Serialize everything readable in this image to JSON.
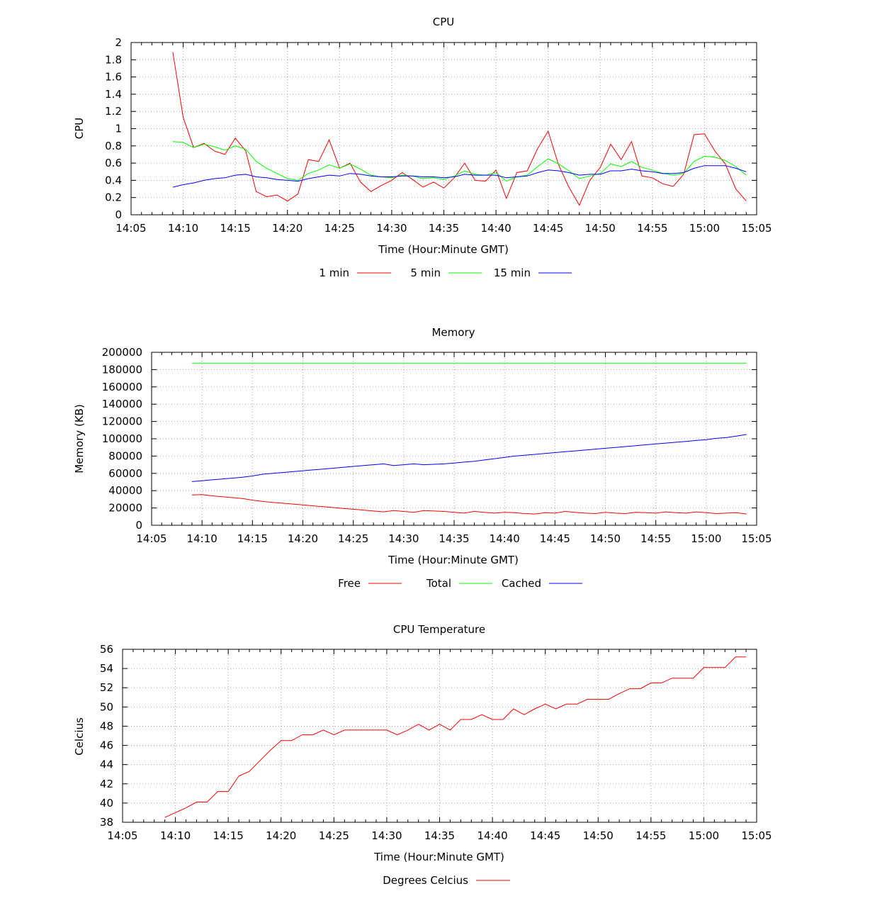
{
  "chart_data": [
    {
      "type": "line",
      "title": "CPU",
      "xlabel": "Time (Hour:Minute GMT)",
      "ylabel": "CPU",
      "xlim": [
        "14:05",
        "15:05"
      ],
      "ylim": [
        0,
        2
      ],
      "xticks": [
        "14:05",
        "14:10",
        "14:15",
        "14:20",
        "14:25",
        "14:30",
        "14:35",
        "14:40",
        "14:45",
        "14:50",
        "14:55",
        "15:00",
        "15:05"
      ],
      "yticks": [
        "0",
        "0.2",
        "0.4",
        "0.6",
        "0.8",
        "1",
        "1.2",
        "1.4",
        "1.6",
        "1.8",
        "2"
      ],
      "grid": true,
      "legend_position": "bottom",
      "x": [
        "14:09",
        "14:10",
        "14:11",
        "14:12",
        "14:13",
        "14:14",
        "14:15",
        "14:16",
        "14:17",
        "14:18",
        "14:19",
        "14:20",
        "14:21",
        "14:22",
        "14:23",
        "14:24",
        "14:25",
        "14:26",
        "14:27",
        "14:28",
        "14:29",
        "14:30",
        "14:31",
        "14:32",
        "14:33",
        "14:34",
        "14:35",
        "14:36",
        "14:37",
        "14:38",
        "14:39",
        "14:40",
        "14:41",
        "14:42",
        "14:43",
        "14:44",
        "14:45",
        "14:46",
        "14:47",
        "14:48",
        "14:49",
        "14:50",
        "14:51",
        "14:52",
        "14:53",
        "14:54",
        "14:55",
        "14:56",
        "14:57",
        "14:58",
        "14:59",
        "15:00",
        "15:01",
        "15:02",
        "15:03",
        "15:04"
      ],
      "series": [
        {
          "name": "1 min",
          "color": "#ff0000",
          "values": [
            1.89,
            1.13,
            0.78,
            0.83,
            0.74,
            0.7,
            0.89,
            0.74,
            0.27,
            0.21,
            0.23,
            0.16,
            0.24,
            0.64,
            0.62,
            0.87,
            0.54,
            0.6,
            0.38,
            0.27,
            0.34,
            0.4,
            0.49,
            0.41,
            0.32,
            0.38,
            0.31,
            0.43,
            0.6,
            0.4,
            0.39,
            0.52,
            0.19,
            0.49,
            0.51,
            0.77,
            0.97,
            0.58,
            0.32,
            0.11,
            0.4,
            0.55,
            0.82,
            0.64,
            0.85,
            0.45,
            0.43,
            0.36,
            0.33,
            0.47,
            0.93,
            0.94,
            0.74,
            0.59,
            0.3,
            0.16
          ]
        },
        {
          "name": "5 min",
          "color": "#00ff00",
          "values": [
            0.85,
            0.84,
            0.78,
            0.82,
            0.79,
            0.75,
            0.8,
            0.76,
            0.62,
            0.54,
            0.48,
            0.42,
            0.4,
            0.48,
            0.52,
            0.58,
            0.54,
            0.59,
            0.53,
            0.46,
            0.44,
            0.43,
            0.46,
            0.45,
            0.42,
            0.43,
            0.41,
            0.45,
            0.51,
            0.47,
            0.46,
            0.49,
            0.39,
            0.44,
            0.46,
            0.56,
            0.65,
            0.59,
            0.51,
            0.42,
            0.45,
            0.48,
            0.59,
            0.56,
            0.62,
            0.55,
            0.52,
            0.48,
            0.46,
            0.48,
            0.62,
            0.68,
            0.67,
            0.63,
            0.56,
            0.46
          ]
        },
        {
          "name": "15 min",
          "color": "#0000ff",
          "values": [
            0.32,
            0.35,
            0.37,
            0.4,
            0.42,
            0.43,
            0.46,
            0.47,
            0.44,
            0.43,
            0.41,
            0.4,
            0.39,
            0.42,
            0.44,
            0.46,
            0.45,
            0.48,
            0.47,
            0.45,
            0.44,
            0.44,
            0.45,
            0.45,
            0.44,
            0.44,
            0.43,
            0.44,
            0.47,
            0.46,
            0.46,
            0.46,
            0.43,
            0.44,
            0.45,
            0.49,
            0.52,
            0.51,
            0.49,
            0.46,
            0.47,
            0.47,
            0.51,
            0.51,
            0.53,
            0.51,
            0.5,
            0.48,
            0.48,
            0.49,
            0.54,
            0.57,
            0.57,
            0.57,
            0.54,
            0.5
          ]
        }
      ]
    },
    {
      "type": "line",
      "title": "Memory",
      "xlabel": "Time (Hour:Minute GMT)",
      "ylabel": "Memory (KB)",
      "xlim": [
        "14:05",
        "15:05"
      ],
      "ylim": [
        0,
        200000
      ],
      "xticks": [
        "14:05",
        "14:10",
        "14:15",
        "14:20",
        "14:25",
        "14:30",
        "14:35",
        "14:40",
        "14:45",
        "14:50",
        "14:55",
        "15:00",
        "15:05"
      ],
      "yticks": [
        "0",
        "20000",
        "40000",
        "60000",
        "80000",
        "100000",
        "120000",
        "140000",
        "160000",
        "180000",
        "200000"
      ],
      "grid": true,
      "legend_position": "bottom",
      "x": [
        "14:09",
        "14:10",
        "14:11",
        "14:12",
        "14:13",
        "14:14",
        "14:15",
        "14:16",
        "14:17",
        "14:18",
        "14:19",
        "14:20",
        "14:21",
        "14:22",
        "14:23",
        "14:24",
        "14:25",
        "14:26",
        "14:27",
        "14:28",
        "14:29",
        "14:30",
        "14:31",
        "14:32",
        "14:33",
        "14:34",
        "14:35",
        "14:36",
        "14:37",
        "14:38",
        "14:39",
        "14:40",
        "14:41",
        "14:42",
        "14:43",
        "14:44",
        "14:45",
        "14:46",
        "14:47",
        "14:48",
        "14:49",
        "14:50",
        "14:51",
        "14:52",
        "14:53",
        "14:54",
        "14:55",
        "14:56",
        "14:57",
        "14:58",
        "14:59",
        "15:00",
        "15:01",
        "15:02",
        "15:03",
        "15:04"
      ],
      "series": [
        {
          "name": "Free",
          "color": "#ff0000",
          "values": [
            35000,
            35500,
            34000,
            33000,
            32000,
            31000,
            29000,
            27500,
            26500,
            25500,
            24500,
            23500,
            22500,
            21500,
            20500,
            19500,
            18500,
            17500,
            16500,
            15500,
            17000,
            16000,
            15000,
            17000,
            16500,
            16000,
            15000,
            14000,
            16000,
            15000,
            14000,
            15000,
            14500,
            13500,
            13000,
            14500,
            14000,
            16000,
            15000,
            14000,
            13500,
            15000,
            14000,
            13500,
            15000,
            14500,
            14000,
            15500,
            14500,
            14000,
            15500,
            14500,
            13500,
            14000,
            14500,
            13000
          ]
        },
        {
          "name": "Total",
          "color": "#00ff00",
          "values": [
            187500,
            187500,
            187500,
            187500,
            187500,
            187500,
            187500,
            187500,
            187500,
            187500,
            187500,
            187500,
            187500,
            187500,
            187500,
            187500,
            187500,
            187500,
            187500,
            187500,
            187500,
            187500,
            187500,
            187500,
            187500,
            187500,
            187500,
            187500,
            187500,
            187500,
            187500,
            187500,
            187500,
            187500,
            187500,
            187500,
            187500,
            187500,
            187500,
            187500,
            187500,
            187500,
            187500,
            187500,
            187500,
            187500,
            187500,
            187500,
            187500,
            187500,
            187500,
            187500,
            187500,
            187500,
            187500,
            187500
          ]
        },
        {
          "name": "Cached",
          "color": "#0000ff",
          "values": [
            50500,
            51500,
            52500,
            53500,
            54500,
            55500,
            57000,
            59000,
            60000,
            61000,
            62000,
            63000,
            64000,
            65000,
            66000,
            67000,
            68000,
            69000,
            70000,
            71000,
            69000,
            70000,
            71000,
            70000,
            70500,
            71000,
            72000,
            73000,
            74000,
            75500,
            77000,
            78500,
            80000,
            81000,
            82000,
            83000,
            84000,
            85000,
            86000,
            87000,
            88000,
            89000,
            90000,
            91000,
            92000,
            93000,
            94000,
            95000,
            96000,
            97000,
            98000,
            99000,
            100500,
            101500,
            103000,
            105000
          ]
        }
      ]
    },
    {
      "type": "line",
      "title": "CPU Temperature",
      "xlabel": "Time (Hour:Minute GMT)",
      "ylabel": "Celcius",
      "xlim": [
        "14:05",
        "15:05"
      ],
      "ylim": [
        38,
        56
      ],
      "xticks": [
        "14:05",
        "14:10",
        "14:15",
        "14:20",
        "14:25",
        "14:30",
        "14:35",
        "14:40",
        "14:45",
        "14:50",
        "14:55",
        "15:00",
        "15:05"
      ],
      "yticks": [
        "38",
        "40",
        "42",
        "44",
        "46",
        "48",
        "50",
        "52",
        "54",
        "56"
      ],
      "grid": true,
      "legend_position": "bottom",
      "x": [
        "14:09",
        "14:10",
        "14:11",
        "14:12",
        "14:13",
        "14:14",
        "14:15",
        "14:16",
        "14:17",
        "14:18",
        "14:19",
        "14:20",
        "14:21",
        "14:22",
        "14:23",
        "14:24",
        "14:25",
        "14:26",
        "14:27",
        "14:28",
        "14:29",
        "14:30",
        "14:31",
        "14:32",
        "14:33",
        "14:34",
        "14:35",
        "14:36",
        "14:37",
        "14:38",
        "14:39",
        "14:40",
        "14:41",
        "14:42",
        "14:43",
        "14:44",
        "14:45",
        "14:46",
        "14:47",
        "14:48",
        "14:49",
        "14:50",
        "14:51",
        "14:52",
        "14:53",
        "14:54",
        "14:55",
        "14:56",
        "14:57",
        "14:58",
        "14:59",
        "15:00",
        "15:01",
        "15:02",
        "15:03",
        "15:04"
      ],
      "series": [
        {
          "name": "Degrees Celcius",
          "color": "#ff0000",
          "values": [
            38.5,
            39.0,
            39.5,
            40.1,
            40.1,
            41.2,
            41.2,
            42.8,
            43.3,
            44.4,
            45.5,
            46.5,
            46.5,
            47.1,
            47.1,
            47.6,
            47.1,
            47.6,
            47.6,
            47.6,
            47.6,
            47.6,
            47.1,
            47.6,
            48.2,
            47.6,
            48.2,
            47.6,
            48.7,
            48.7,
            49.2,
            48.7,
            48.7,
            49.8,
            49.2,
            49.8,
            50.3,
            49.8,
            50.3,
            50.3,
            50.8,
            50.8,
            50.8,
            51.4,
            51.9,
            51.9,
            52.5,
            52.5,
            53.0,
            53.0,
            53.0,
            54.1,
            54.1,
            54.1,
            55.2,
            55.2
          ]
        }
      ]
    }
  ]
}
